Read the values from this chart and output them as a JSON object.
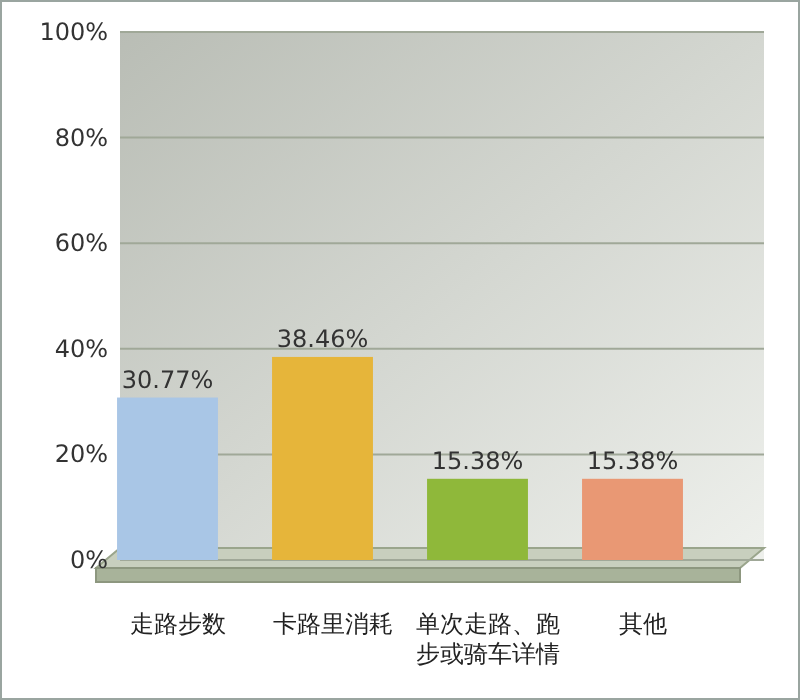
{
  "chart_data": {
    "type": "bar",
    "categories": [
      "走路步数",
      "卡路里消耗",
      "单次走路、跑步或骑车详情",
      "其他"
    ],
    "values": [
      30.77,
      38.46,
      15.38,
      15.38
    ],
    "value_labels": [
      "30.77%",
      "38.46%",
      "15.38%",
      "15.38%"
    ],
    "colors": [
      "#a9c6e6",
      "#e6b53a",
      "#8fb83a",
      "#e99874"
    ],
    "ylim": [
      0,
      100
    ],
    "yticks": [
      {
        "value": 0,
        "label": "0%"
      },
      {
        "value": 20,
        "label": "20%"
      },
      {
        "value": 40,
        "label": "40%"
      },
      {
        "value": 60,
        "label": "60%"
      },
      {
        "value": 80,
        "label": "80%"
      },
      {
        "value": 100,
        "label": "100%"
      }
    ],
    "grid": "y"
  }
}
